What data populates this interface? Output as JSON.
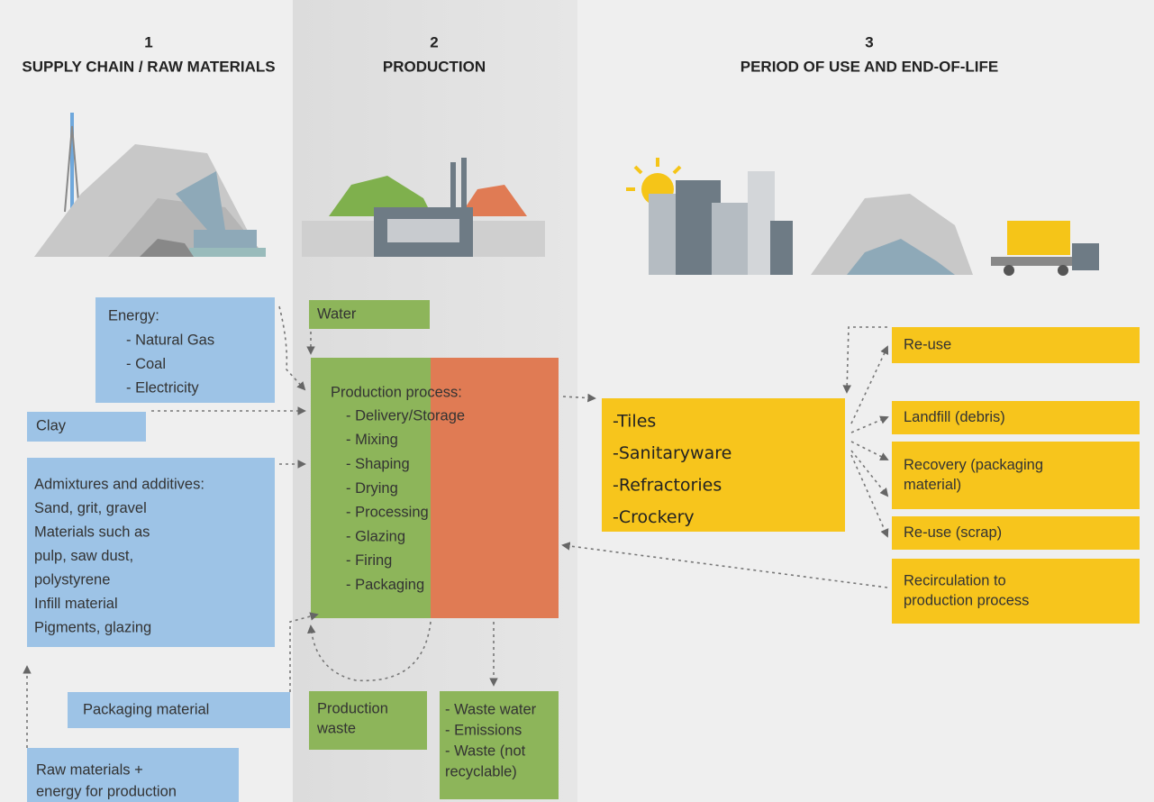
{
  "columns": [
    {
      "number": "1",
      "title": "SUPPLY CHAIN / RAW MATERIALS"
    },
    {
      "number": "2",
      "title": "PRODUCTION"
    },
    {
      "number": "3",
      "title": "PERIOD OF USE AND END-OF-LIFE"
    }
  ],
  "inputs": {
    "energy": {
      "title": "Energy:",
      "items": [
        "- Natural Gas",
        "- Coal",
        "- Electricity"
      ]
    },
    "clay": "Clay",
    "admixtures": [
      "Admixtures and additives:",
      "Sand, grit, gravel",
      "Materials such as",
      "pulp, saw dust,",
      "polystyrene",
      "Infill material",
      "Pigments, glazing"
    ],
    "packaging": "Packaging material",
    "raw_materials": [
      "Raw materials +",
      "energy for production"
    ]
  },
  "water": "Water",
  "process": {
    "title": "Production process:",
    "steps": [
      "- Delivery/Storage",
      "- Mixing",
      "- Shaping",
      "- Drying",
      "- Processing",
      "- Glazing",
      "- Firing",
      "- Packaging"
    ]
  },
  "production_waste": [
    "Production",
    "waste"
  ],
  "waste_out": [
    "- Waste water",
    "- Emissions",
    "- Waste (not",
    "recyclable)"
  ],
  "products": [
    "-Tiles",
    "-Sanitaryware",
    "-Refractories",
    "-Crockery"
  ],
  "end_of_life": [
    [
      "Re-use"
    ],
    [
      "Landfill (debris)"
    ],
    [
      "Recovery (packaging",
      "material)"
    ],
    [
      "Re-use (scrap)"
    ],
    [
      "Recirculation to",
      "production process"
    ]
  ]
}
